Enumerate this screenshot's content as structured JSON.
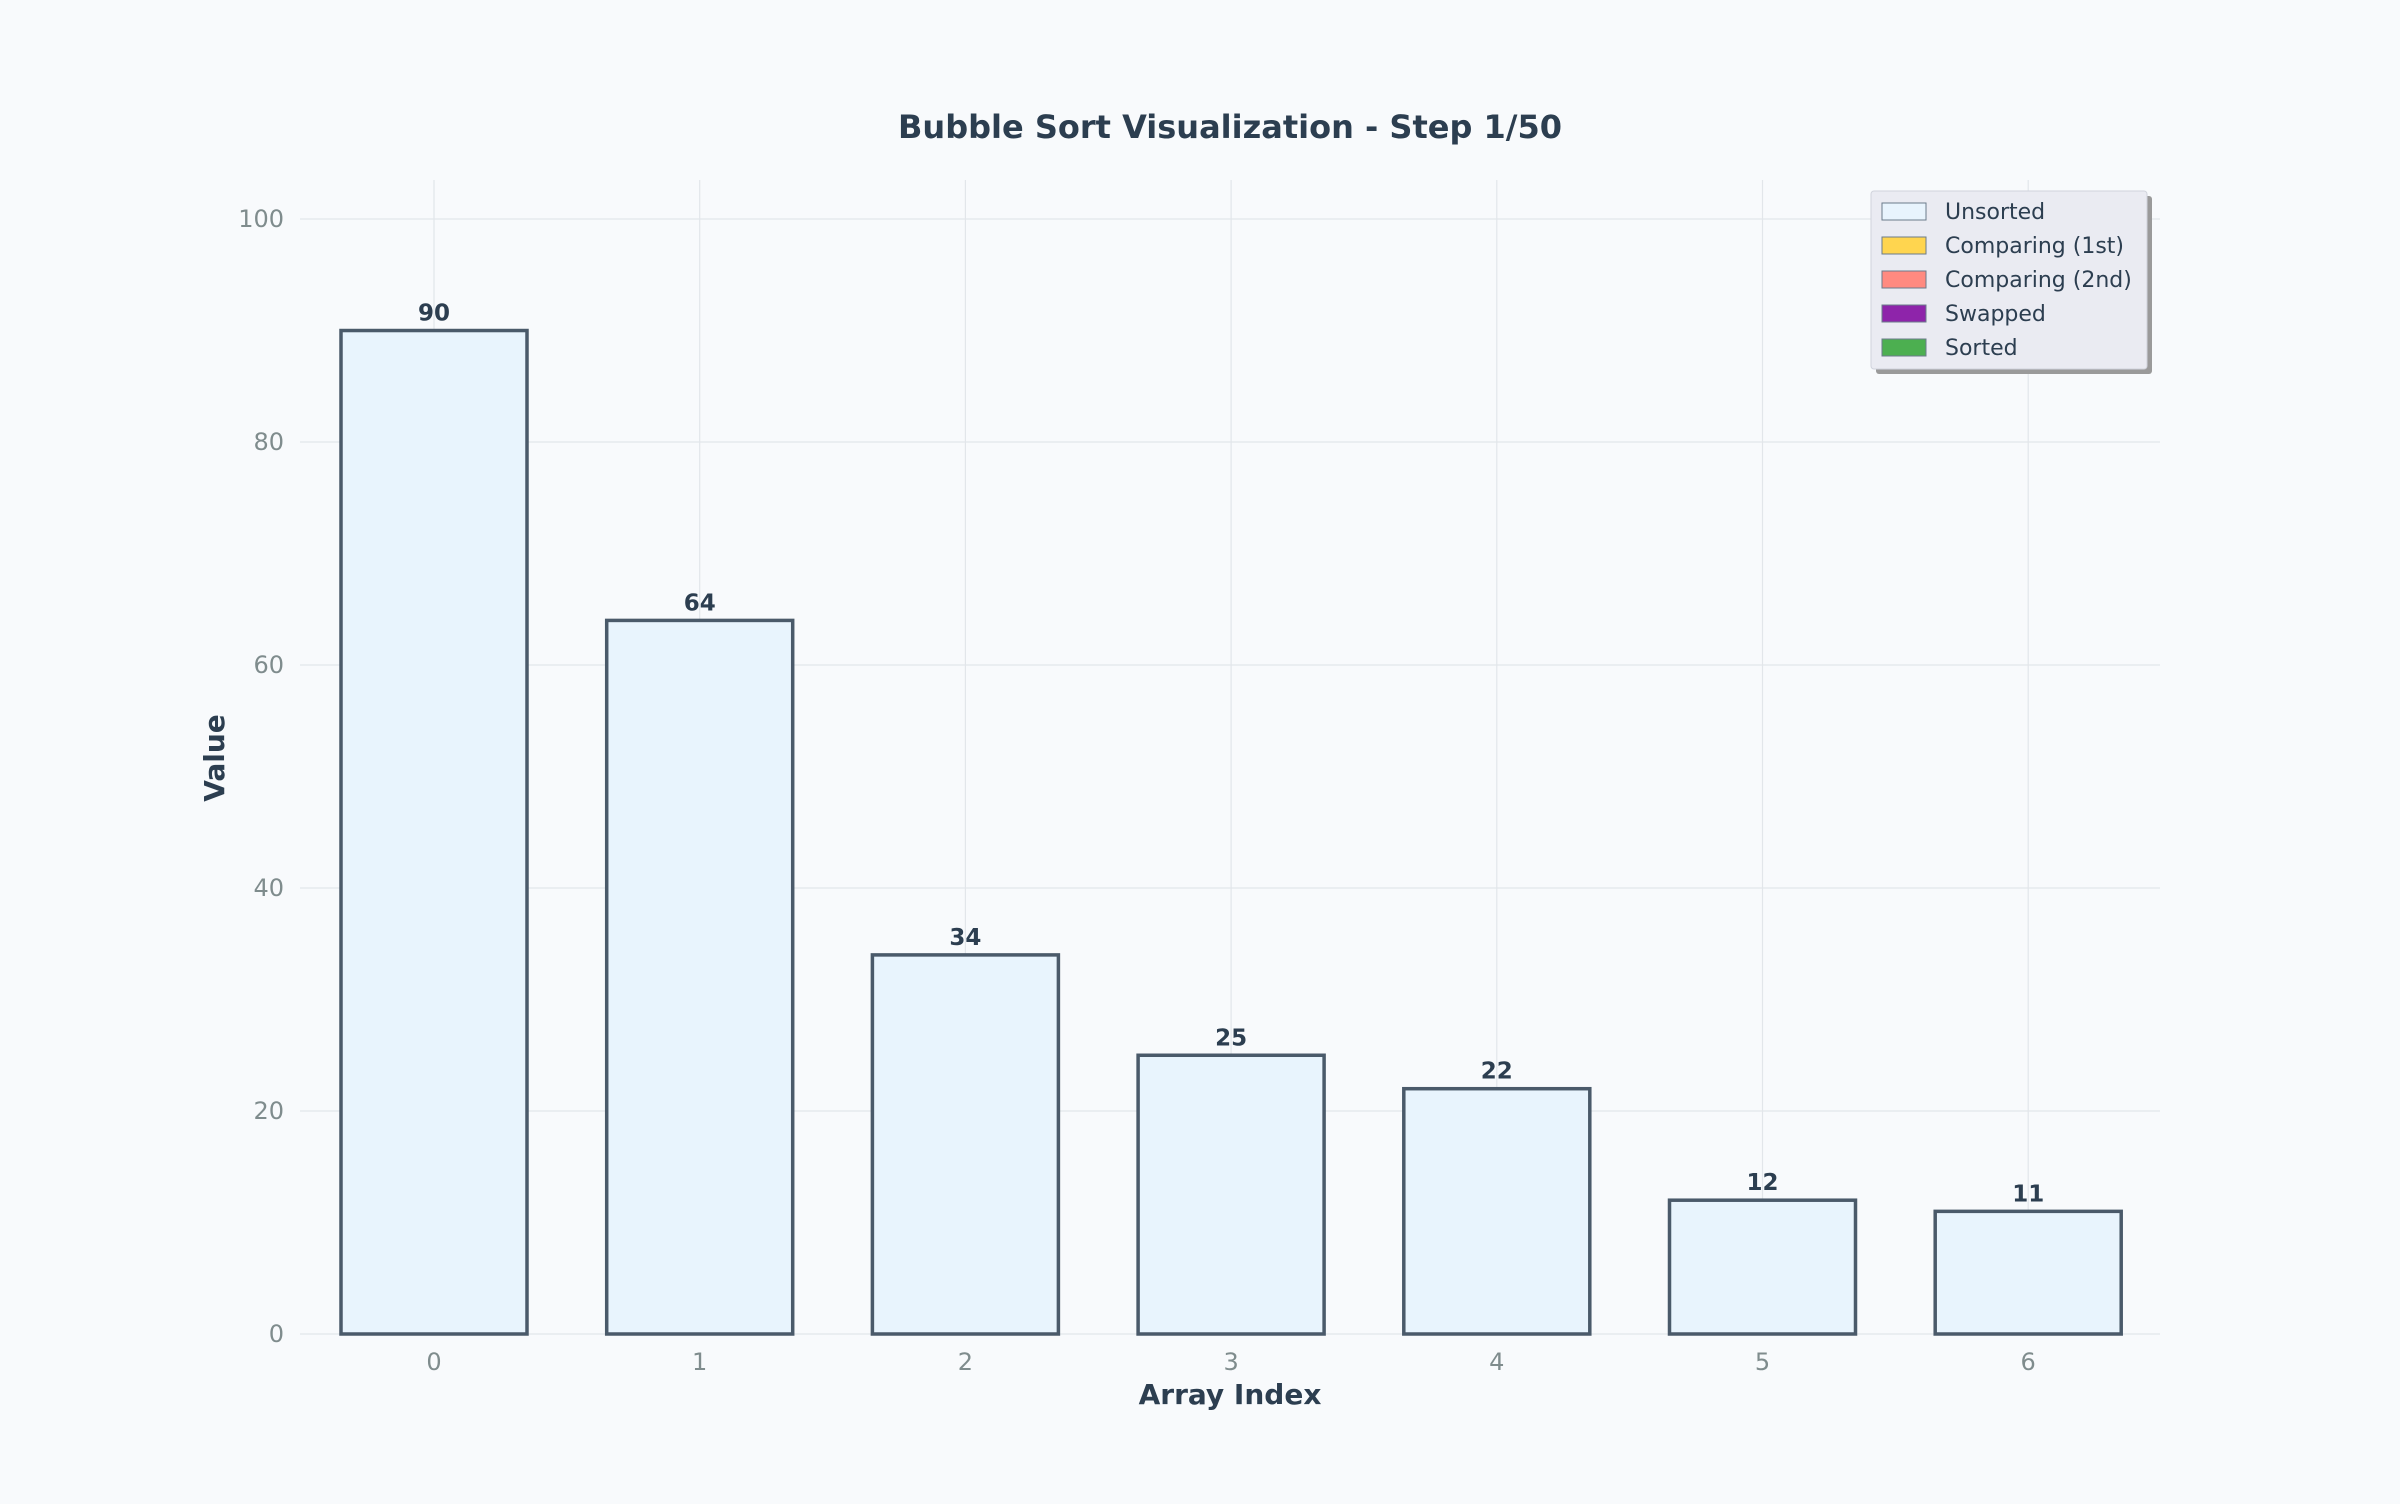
{
  "chart_data": {
    "type": "bar",
    "title": "Bubble Sort Visualization - Step 1/50",
    "xlabel": "Array Index",
    "ylabel": "Value",
    "categories": [
      "0",
      "1",
      "2",
      "3",
      "4",
      "5",
      "6"
    ],
    "values": [
      90,
      64,
      34,
      25,
      22,
      12,
      11
    ],
    "bar_states": [
      "unsorted",
      "unsorted",
      "unsorted",
      "unsorted",
      "unsorted",
      "unsorted",
      "unsorted"
    ],
    "ylim": [
      0,
      103.5
    ],
    "yticks": [
      0,
      20,
      40,
      60,
      80,
      100
    ],
    "grid": true,
    "legend": {
      "position": "top-right",
      "entries": [
        {
          "key": "unsorted",
          "label": "Unsorted",
          "color": "#e8f4fd"
        },
        {
          "key": "comparing1",
          "label": "Comparing (1st)",
          "color": "#ffd54f"
        },
        {
          "key": "comparing2",
          "label": "Comparing (2nd)",
          "color": "#ff8a80"
        },
        {
          "key": "swapped",
          "label": "Swapped",
          "color": "#8e24aa"
        },
        {
          "key": "sorted",
          "label": "Sorted",
          "color": "#4caf50"
        }
      ]
    }
  },
  "colors": {
    "background": "#f8fafc",
    "bar_edge": "#4a5a6a",
    "text": "#2c3e50",
    "tick": "#7f8c8d",
    "legend_bg": "#eaebf2"
  }
}
